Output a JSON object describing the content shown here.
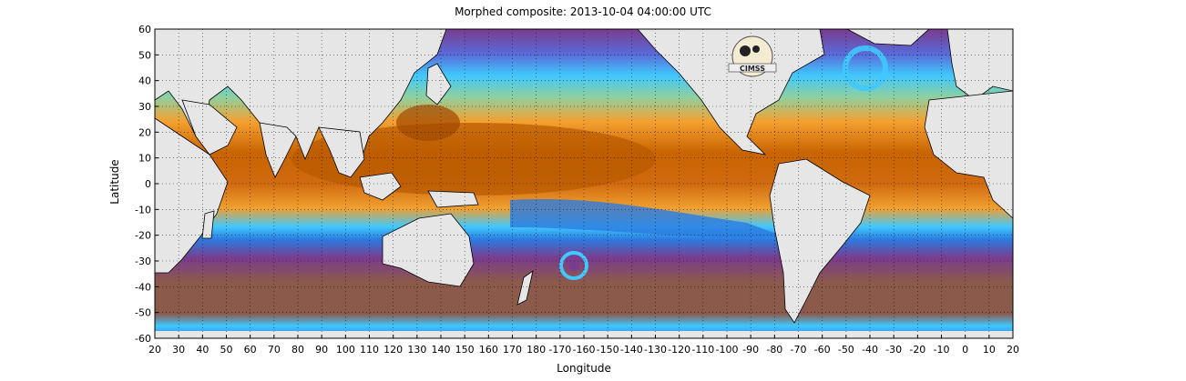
{
  "header": {
    "title": "Morphed composite: 2013-10-04 04:00:00 UTC"
  },
  "axes": {
    "xlabel": "Longitude",
    "ylabel": "Latitude",
    "x_ticks": [
      "20",
      "30",
      "40",
      "50",
      "60",
      "70",
      "80",
      "90",
      "100",
      "110",
      "120",
      "130",
      "140",
      "150",
      "160",
      "170",
      "180",
      "-170",
      "-160",
      "-150",
      "-140",
      "-130",
      "-120",
      "-110",
      "-100",
      "-90",
      "-80",
      "-70",
      "-60",
      "-50",
      "-40",
      "-30",
      "-20",
      "-10",
      "0",
      "10",
      "20"
    ],
    "y_ticks": [
      "60",
      "50",
      "40",
      "30",
      "20",
      "10",
      "0",
      "-10",
      "-20",
      "-30",
      "-40",
      "-50",
      "-60"
    ],
    "lon_range": [
      20,
      380
    ],
    "lat_range": [
      -60,
      60
    ],
    "grid": "dotted"
  },
  "colors": {
    "land": "#e6e6e6",
    "wet": "#c86400",
    "moist": "#f5a030",
    "mid": "#8ed0a0",
    "blue": "#2c7be0",
    "cyan": "#40c8ff",
    "dry_purple": "#7a3c8e",
    "dry_brown": "#8c5a4a"
  },
  "logo": {
    "text": "CIMSS",
    "icon": "cimss-logo-icon"
  }
}
